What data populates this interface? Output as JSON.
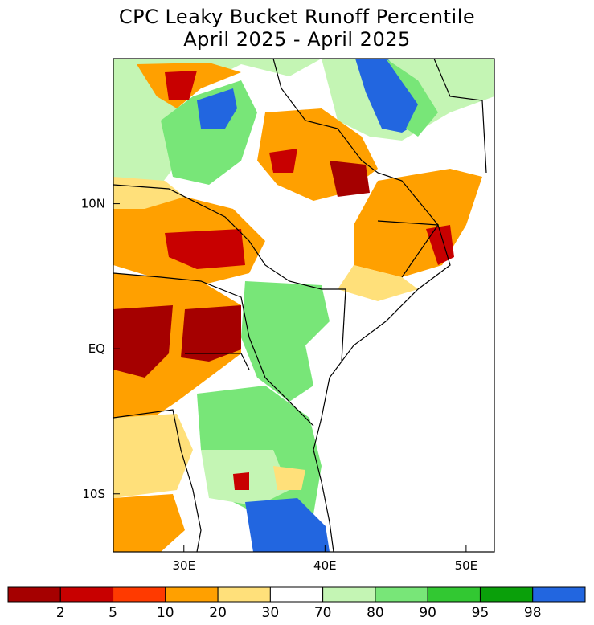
{
  "title": {
    "line1": "CPC Leaky Bucket Runoff Percentile",
    "line2": "April 2025 - April 2025"
  },
  "map_data": {
    "type": "choropleth-map",
    "region": "East Africa",
    "lon_range": [
      25,
      52
    ],
    "lat_range": [
      -14,
      20
    ],
    "x_ticks": [
      {
        "lon": 30,
        "label": "30E"
      },
      {
        "lon": 40,
        "label": "40E"
      },
      {
        "lon": 50,
        "label": "50E"
      }
    ],
    "y_ticks": [
      {
        "lat": 10,
        "label": "10N"
      },
      {
        "lat": 0,
        "label": "EQ"
      },
      {
        "lat": -10,
        "label": "10S"
      }
    ]
  },
  "legend": {
    "colors": [
      "#a50000",
      "#c80000",
      "#ff3a00",
      "#ffa000",
      "#ffe07a",
      "#ffffff",
      "#c4f5b4",
      "#78e678",
      "#32c832",
      "#0aa00a",
      "#2266e0"
    ],
    "labels": [
      "2",
      "5",
      "10",
      "20",
      "30",
      "70",
      "80",
      "90",
      "95",
      "98"
    ]
  }
}
